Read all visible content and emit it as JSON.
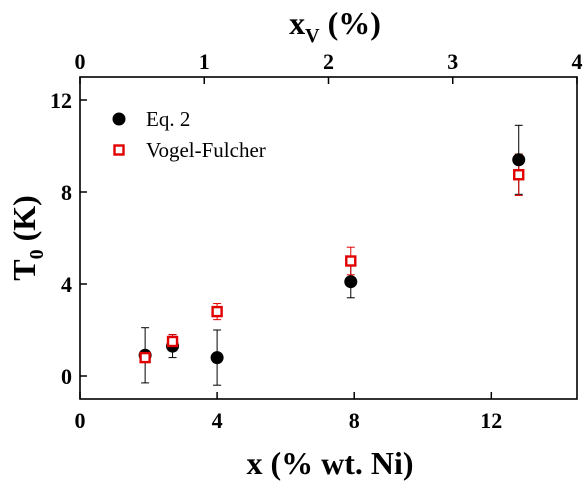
{
  "chart_data": {
    "type": "scatter",
    "xlabel": {
      "main": "x (% wt. Ni)"
    },
    "ylabel": {
      "main": "T",
      "sub": "0",
      "rest": " (K)"
    },
    "top_xlabel": {
      "main": "x",
      "sub": "V",
      "rest": " (%)"
    },
    "xlim": [
      0,
      14.5
    ],
    "ylim": [
      -1,
      13
    ],
    "top_xlim": [
      0,
      4
    ],
    "x_ticks": [
      0,
      4,
      8,
      12
    ],
    "y_ticks": [
      0,
      4,
      8,
      12
    ],
    "top_x_ticks": [
      0,
      1,
      2,
      3,
      4
    ],
    "legend_position": "top-left",
    "grid": false,
    "series": [
      {
        "name": "Eq. 2",
        "marker": "filled-circle",
        "color": "#000000",
        "points": [
          {
            "x": 1.9,
            "y": 0.9,
            "err": 1.2
          },
          {
            "x": 2.7,
            "y": 1.3,
            "err": 0.5
          },
          {
            "x": 4.0,
            "y": 0.8,
            "err": 1.2
          },
          {
            "x": 7.9,
            "y": 4.1,
            "err": 0.7
          },
          {
            "x": 12.8,
            "y": 9.4,
            "err": 1.5
          }
        ]
      },
      {
        "name": "Vogel-Fulcher",
        "marker": "open-square",
        "color": "#e00000",
        "points": [
          {
            "x": 1.9,
            "y": 0.8,
            "err": 0.2
          },
          {
            "x": 2.7,
            "y": 1.5,
            "err": 0.3
          },
          {
            "x": 4.0,
            "y": 2.8,
            "err": 0.35
          },
          {
            "x": 7.9,
            "y": 5.0,
            "err": 0.6
          },
          {
            "x": 12.8,
            "y": 8.75,
            "err": 0.9
          }
        ]
      }
    ]
  }
}
